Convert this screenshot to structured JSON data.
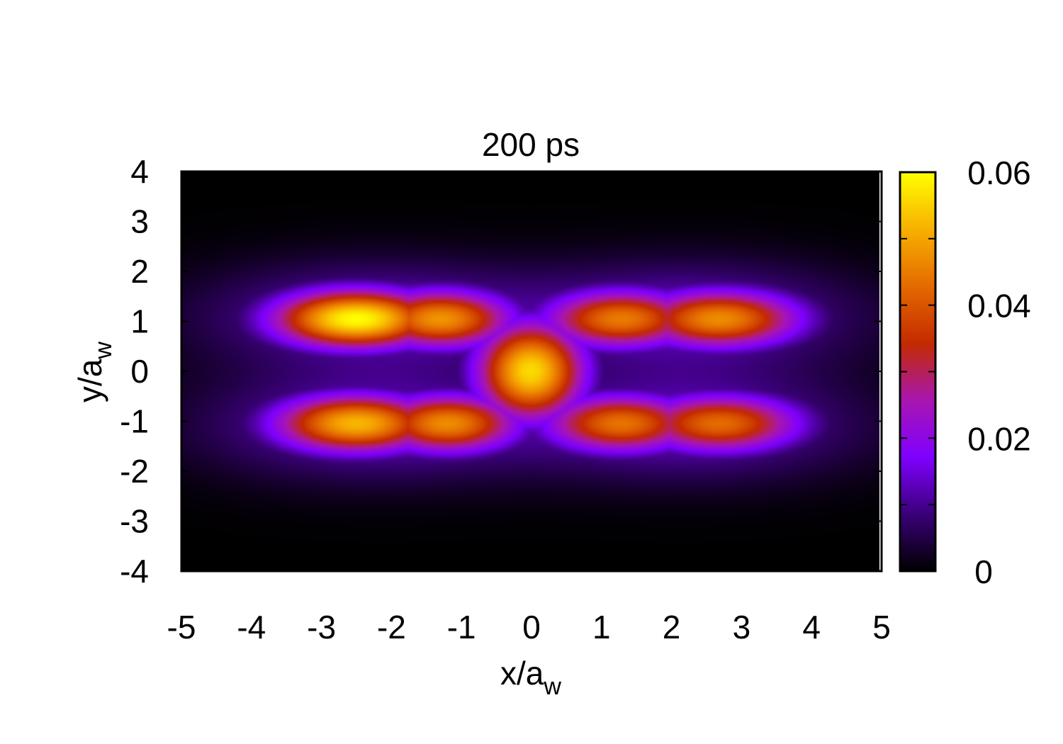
{
  "chart_data": {
    "type": "heatmap",
    "title": "200 ps",
    "xlabel": {
      "main": "x/a",
      "sub": "w"
    },
    "ylabel": {
      "main": "y/a",
      "sub": "w"
    },
    "xlim": [
      -5,
      5
    ],
    "ylim": [
      -4,
      4
    ],
    "xticks": [
      "-5",
      "-4",
      "-3",
      "-2",
      "-1",
      "0",
      "1",
      "2",
      "3",
      "4",
      "5"
    ],
    "yticks": [
      "-4",
      "-3",
      "-2",
      "-1",
      "0",
      "1",
      "2",
      "3",
      "4"
    ],
    "colorbar": {
      "range": [
        0,
        0.06
      ],
      "ticks": [
        "0",
        "0.02",
        "0.04",
        "0.06"
      ],
      "palette": [
        "#000000",
        "#3a0078",
        "#7f00ff",
        "#a816b0",
        "#c42a00",
        "#e46a00",
        "#f8b000",
        "#ffff00"
      ]
    },
    "field": {
      "description_free": true,
      "components": [
        {
          "x": -2.5,
          "y": 1.05,
          "sx": 0.85,
          "sy": 0.42,
          "amp": 0.06
        },
        {
          "x": -1.3,
          "y": 1.05,
          "sx": 0.75,
          "sy": 0.42,
          "amp": 0.048
        },
        {
          "x": 1.3,
          "y": 1.05,
          "sx": 0.8,
          "sy": 0.42,
          "amp": 0.045
        },
        {
          "x": 2.7,
          "y": 1.05,
          "sx": 0.85,
          "sy": 0.42,
          "amp": 0.047
        },
        {
          "x": -2.5,
          "y": -1.05,
          "sx": 0.85,
          "sy": 0.42,
          "amp": 0.052
        },
        {
          "x": -1.2,
          "y": -1.05,
          "sx": 0.75,
          "sy": 0.42,
          "amp": 0.047
        },
        {
          "x": 1.3,
          "y": -1.05,
          "sx": 0.8,
          "sy": 0.42,
          "amp": 0.044
        },
        {
          "x": 2.7,
          "y": -1.05,
          "sx": 0.85,
          "sy": 0.42,
          "amp": 0.043
        },
        {
          "x": 0.0,
          "y": 0.0,
          "sx": 0.55,
          "sy": 0.7,
          "amp": 0.056
        }
      ],
      "halo": [
        {
          "x": -2.3,
          "y": 1.1,
          "sx": 1.7,
          "sy": 0.75,
          "amp": 0.014
        },
        {
          "x": 2.3,
          "y": 1.1,
          "sx": 1.7,
          "sy": 0.75,
          "amp": 0.014
        },
        {
          "x": -2.3,
          "y": -1.1,
          "sx": 1.7,
          "sy": 0.75,
          "amp": 0.014
        },
        {
          "x": 2.3,
          "y": -1.1,
          "sx": 1.7,
          "sy": 0.75,
          "amp": 0.014
        }
      ]
    }
  }
}
